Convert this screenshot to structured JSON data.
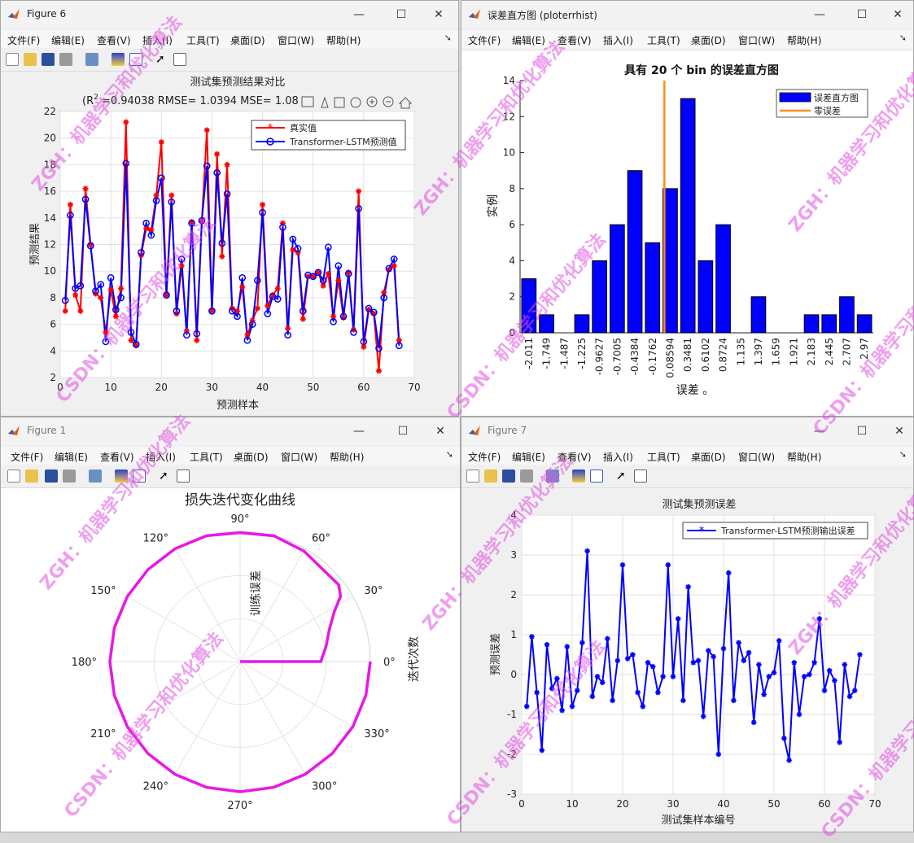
{
  "menu": [
    "文件(F)",
    "编辑(E)",
    "查看(V)",
    "插入(I)",
    "工具(T)",
    "桌面(D)",
    "窗口(W)",
    "帮助(H)"
  ],
  "watermarks": [
    "ZGH：机器学习和优化算法",
    "CSDN：机器学习和优化算法"
  ],
  "windows": {
    "fig6": {
      "title": "Figure 6",
      "chart": {
        "title_line1": "测试集预测结果对比",
        "title_r2_prefix": "(R",
        "title_r2_sup": "2",
        "title_metrics": " =0.94038 RMSE= 1.0394 MSE= 1.08",
        "xlabel": "预测样本",
        "ylabel": "预测结果",
        "xticks": [
          "0",
          "10",
          "20",
          "30",
          "40",
          "50",
          "60",
          "70"
        ],
        "yticks": [
          "2",
          "4",
          "6",
          "8",
          "10",
          "12",
          "14",
          "16",
          "18",
          "20",
          "22"
        ],
        "legend": [
          "真实值",
          "Transformer-LSTM预测值"
        ]
      }
    },
    "hist": {
      "title": "误差直方图 (ploterrhist)",
      "chart": {
        "title": "具有 20 个 bin 的误差直方图",
        "xlabel": "误差 。",
        "ylabel": "实例",
        "yticks": [
          "0",
          "2",
          "4",
          "6",
          "8",
          "10",
          "12",
          "14"
        ],
        "legend": [
          "误差直方图",
          "零误差"
        ]
      }
    },
    "fig1": {
      "title": "Figure 1",
      "chart": {
        "title": "损失迭代变化曲线",
        "radial_label": "训练误差",
        "side_label": "迭代次数",
        "angle_labels": [
          "0°",
          "30°",
          "60°",
          "90°",
          "120°",
          "150°",
          "180°",
          "210°",
          "240°",
          "270°",
          "300°",
          "330°"
        ]
      }
    },
    "fig7": {
      "title": "Figure 7",
      "chart": {
        "title": "测试集预测误差",
        "xlabel": "测试集样本编号",
        "ylabel": "预测误差",
        "xticks": [
          "0",
          "10",
          "20",
          "30",
          "40",
          "50",
          "60",
          "70"
        ],
        "yticks": [
          "-3",
          "-2",
          "-1",
          "0",
          "1",
          "2",
          "3",
          "4"
        ],
        "legend": [
          "Transformer-LSTM预测输出误差"
        ]
      }
    }
  },
  "chart_data": [
    {
      "type": "line",
      "title": "测试集预测结果对比 (R2 =0.94038 RMSE= 1.0394 MSE= 1.08",
      "xlabel": "预测样本",
      "ylabel": "预测结果",
      "xlim": [
        0,
        70
      ],
      "ylim": [
        2,
        22
      ],
      "grid": true,
      "legend_position": "top-right",
      "colors": {
        "true": "#ff0000",
        "pred": "#0000ff"
      },
      "x": [
        1,
        2,
        3,
        4,
        5,
        6,
        7,
        8,
        9,
        10,
        11,
        12,
        13,
        14,
        15,
        16,
        17,
        18,
        19,
        20,
        21,
        22,
        23,
        24,
        25,
        26,
        27,
        28,
        29,
        30,
        31,
        32,
        33,
        34,
        35,
        36,
        37,
        38,
        39,
        40,
        41,
        42,
        43,
        44,
        45,
        46,
        47,
        48,
        49,
        50,
        51,
        52,
        53,
        54,
        55,
        56,
        57,
        58,
        59,
        60,
        61,
        62,
        63,
        64,
        65,
        66,
        67
      ],
      "series": [
        {
          "name": "真实值",
          "values": [
            7.0,
            15.0,
            8.2,
            7.0,
            16.2,
            12.0,
            8.3,
            8.0,
            5.4,
            8.6,
            6.6,
            8.7,
            21.2,
            4.8,
            4.4,
            11.2,
            13.2,
            13.1,
            15.7,
            19.7,
            8.2,
            15.7,
            6.8,
            10.4,
            5.5,
            13.7,
            4.8,
            13.8,
            20.6,
            7.0,
            18.8,
            11.1,
            18.0,
            7.2,
            7.0,
            8.8,
            5.2,
            6.3,
            7.2,
            15.0,
            7.4,
            8.2,
            8.7,
            13.6,
            5.7,
            11.6,
            11.4,
            6.4,
            9.6,
            9.6,
            9.9,
            8.9,
            9.8,
            6.6,
            9.3,
            6.5,
            9.9,
            5.6,
            16.0,
            4.3,
            7.1,
            6.8,
            2.5,
            8.4,
            10.1,
            10.4,
            4.8
          ]
        },
        {
          "name": "Transformer-LSTM预测值",
          "values": [
            7.8,
            14.2,
            8.7,
            8.9,
            15.4,
            11.9,
            8.5,
            9.0,
            4.7,
            9.5,
            7.1,
            8.0,
            18.1,
            5.4,
            4.5,
            11.4,
            13.6,
            12.7,
            15.3,
            17.0,
            8.2,
            15.2,
            7.0,
            10.9,
            5.2,
            13.6,
            5.3,
            13.8,
            17.9,
            7.0,
            17.4,
            12.1,
            15.8,
            7.0,
            6.6,
            9.5,
            4.8,
            6.0,
            9.3,
            14.4,
            6.8,
            8.1,
            7.9,
            13.3,
            5.2,
            12.4,
            11.7,
            7.0,
            9.7,
            9.6,
            9.9,
            9.3,
            11.8,
            6.2,
            10.4,
            6.6,
            9.8,
            5.4,
            14.7,
            4.7,
            7.2,
            6.9,
            4.2,
            8.0,
            10.2,
            10.9,
            4.4
          ]
        }
      ]
    },
    {
      "type": "bar",
      "title": "具有 20 个 bin 的误差直方图",
      "xlabel": "误差 。",
      "ylabel": "实例",
      "ylim": [
        0,
        14
      ],
      "legend_position": "top-right",
      "colors": {
        "bar": "#0000ff",
        "zero_line": "#ff8c1a"
      },
      "categories": [
        "-2.011",
        "-1.749",
        "-1.487",
        "-1.225",
        "-0.9627",
        "-0.7005",
        "-0.4384",
        "-0.1762",
        "0.08594",
        "0.3481",
        "0.6102",
        "0.8724",
        "1.135",
        "1.397",
        "1.659",
        "1.921",
        "2.183",
        "2.445",
        "2.707",
        "2.97"
      ],
      "values": [
        3,
        1,
        0,
        1,
        4,
        6,
        9,
        5,
        8,
        13,
        4,
        6,
        0,
        2,
        0,
        0,
        1,
        1,
        2,
        1
      ],
      "zero_error_x": 0
    },
    {
      "type": "line",
      "title": "损失迭代变化曲线",
      "subtype": "polar",
      "radial_label": "训练误差",
      "angular_label": "迭代次数",
      "theta_deg": [
        0,
        10,
        20,
        28,
        33,
        38,
        45,
        60,
        75,
        90,
        105,
        120,
        135,
        150,
        165,
        180,
        195,
        210,
        225,
        240,
        255,
        270,
        285,
        300,
        315,
        330,
        345,
        360
      ],
      "r": [
        0.62,
        0.67,
        0.73,
        0.82,
        0.92,
        0.96,
        0.95,
        0.98,
        1.0,
        0.99,
        1.0,
        1.0,
        1.0,
        1.0,
        1.0,
        1.0,
        1.0,
        1.0,
        1.0,
        1.0,
        1.0,
        1.0,
        1.0,
        1.0,
        1.0,
        1.0,
        1.0,
        1.0
      ],
      "color": "#e817e8"
    },
    {
      "type": "line",
      "title": "测试集预测误差",
      "xlabel": "测试集样本编号",
      "ylabel": "预测误差",
      "xlim": [
        0,
        70
      ],
      "ylim": [
        -3,
        4
      ],
      "grid": true,
      "legend_position": "top-right",
      "color": "#0000ff",
      "x": [
        1,
        2,
        3,
        4,
        5,
        6,
        7,
        8,
        9,
        10,
        11,
        12,
        13,
        14,
        15,
        16,
        17,
        18,
        19,
        20,
        21,
        22,
        23,
        24,
        25,
        26,
        27,
        28,
        29,
        30,
        31,
        32,
        33,
        34,
        35,
        36,
        37,
        38,
        39,
        40,
        41,
        42,
        43,
        44,
        45,
        46,
        47,
        48,
        49,
        50,
        51,
        52,
        53,
        54,
        55,
        56,
        57,
        58,
        59,
        60,
        61,
        62,
        63,
        64,
        65,
        66,
        67
      ],
      "series": [
        {
          "name": "Transformer-LSTM预测输出误差",
          "values": [
            -0.8,
            0.95,
            -0.45,
            -1.9,
            0.75,
            -0.35,
            -0.1,
            -0.9,
            0.7,
            -0.8,
            -0.4,
            0.8,
            3.1,
            -0.55,
            -0.05,
            -0.2,
            0.9,
            -0.65,
            0.35,
            2.75,
            0.4,
            0.5,
            -0.45,
            -0.8,
            0.3,
            0.2,
            -0.45,
            -0.05,
            2.75,
            -0.05,
            1.4,
            -0.65,
            2.2,
            0.3,
            0.35,
            -1.05,
            0.6,
            0.45,
            -2.0,
            0.65,
            2.55,
            -0.65,
            0.8,
            0.35,
            0.55,
            -1.2,
            0.25,
            -0.5,
            -0.05,
            0.05,
            0.85,
            -1.6,
            -2.15,
            0.3,
            -1.0,
            -0.05,
            0.0,
            0.3,
            1.4,
            -0.4,
            0.1,
            -0.15,
            -1.7,
            0.25,
            -0.55,
            -0.4,
            0.5
          ]
        }
      ]
    }
  ]
}
